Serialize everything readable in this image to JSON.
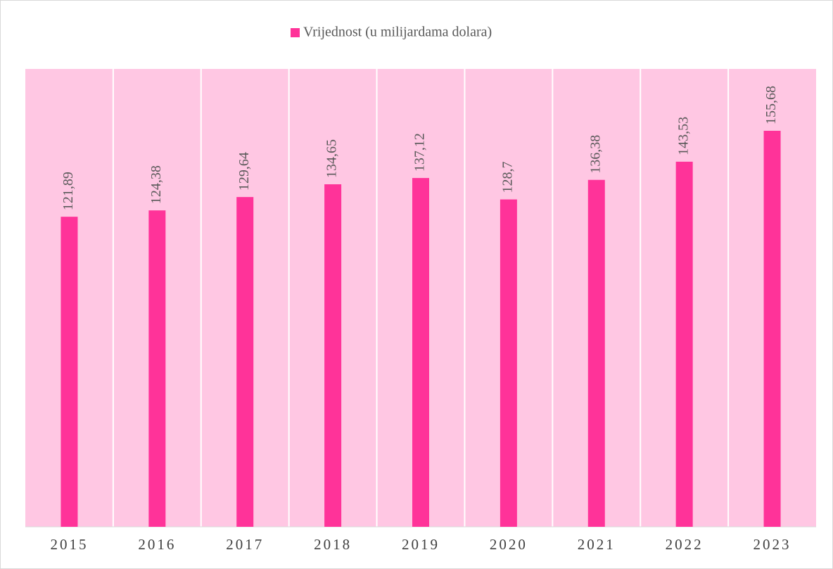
{
  "chart_data": {
    "type": "bar",
    "categories": [
      "2015",
      "2016",
      "2017",
      "2018",
      "2019",
      "2020",
      "2021",
      "2022",
      "2023"
    ],
    "series": [
      {
        "name": "Vrijednost (u milijardama dolara)",
        "color": "#ff3399",
        "values": [
          121.89,
          124.38,
          129.64,
          134.65,
          137.12,
          128.7,
          136.38,
          143.53,
          155.68
        ],
        "value_labels": [
          "121,89",
          "124,38",
          "129,64",
          "134,65",
          "137,12",
          "128,7",
          "136,38",
          "143,53",
          "155,68"
        ]
      }
    ],
    "ylim": [
      0,
      180
    ],
    "plot_background": "#ffc7e3",
    "legend": "top"
  }
}
